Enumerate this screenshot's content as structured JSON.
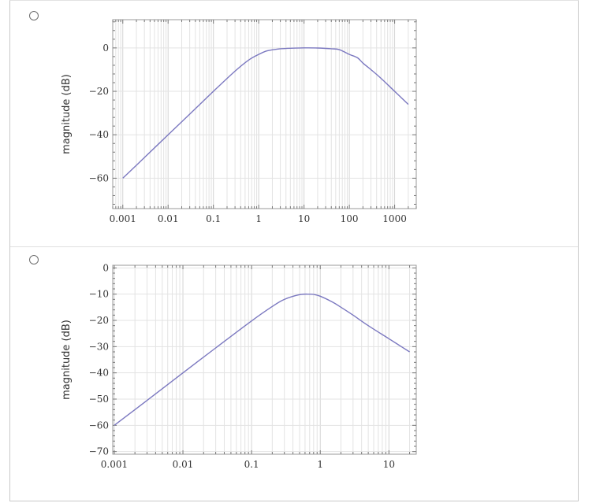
{
  "options": [
    {
      "chart_data": {
        "type": "line",
        "xscale": "log",
        "xlim": [
          0.0006,
          3000
        ],
        "ylim": [
          -74,
          13
        ],
        "ylabel": "magnitude  (dB)",
        "xlabel": "",
        "title": "",
        "grid": true,
        "x_ticks": [
          0.001,
          0.01,
          0.1,
          1,
          10,
          100,
          1000
        ],
        "x_tick_labels": [
          "0.001",
          "0.01",
          "0.1",
          "1",
          "10",
          "100",
          "1000"
        ],
        "y_ticks": [
          0,
          -20,
          -40,
          -60
        ],
        "y_tick_labels": [
          "0",
          "−20",
          "−40",
          "−60"
        ],
        "line_color": "#7b78c0",
        "series": [
          {
            "x": [
              0.001,
              0.003,
              0.01,
              0.03,
              0.1,
              0.3,
              0.6,
              1,
              1.5,
              2,
              3,
              5,
              10,
              20,
              40,
              60,
              100,
              150,
              200,
              300,
              500,
              1000,
              2000
            ],
            "y": [
              -60,
              -50.5,
              -40,
              -30.5,
              -20,
              -10.7,
              -5.6,
              -3,
              -1.4,
              -0.9,
              -0.4,
              -0.15,
              0,
              -0.05,
              -0.4,
              -0.8,
              -3,
              -4.5,
              -7,
              -10,
              -14,
              -20,
              -26
            ]
          }
        ]
      }
    },
    {
      "chart_data": {
        "type": "line",
        "xscale": "log",
        "xlim": [
          0.00095,
          25
        ],
        "ylim": [
          -71,
          1
        ],
        "ylabel": "magnitude  (dB)",
        "xlabel": "",
        "title": "",
        "grid": true,
        "x_ticks": [
          0.001,
          0.01,
          0.1,
          1,
          10
        ],
        "x_tick_labels": [
          "0.001",
          "0.01",
          "0.1",
          "1",
          "10"
        ],
        "y_ticks": [
          0,
          -10,
          -20,
          -30,
          -40,
          -50,
          -60,
          -70
        ],
        "y_tick_labels": [
          "0",
          "−10",
          "−20",
          "−30",
          "−40",
          "−50",
          "−60",
          "−70"
        ],
        "line_color": "#7b78c0",
        "series": [
          {
            "x": [
              0.001,
              0.003,
              0.01,
              0.03,
              0.1,
              0.2,
              0.3,
              0.5,
              0.7,
              0.8,
              1,
              1.5,
              2,
              3,
              5,
              10,
              20
            ],
            "y": [
              -60,
              -50.5,
              -40,
              -30.5,
              -20.2,
              -14.7,
              -12,
              -10.2,
              -10,
              -10.1,
              -10.8,
              -13,
              -15,
              -18,
              -22,
              -27,
              -32
            ]
          }
        ]
      }
    }
  ]
}
